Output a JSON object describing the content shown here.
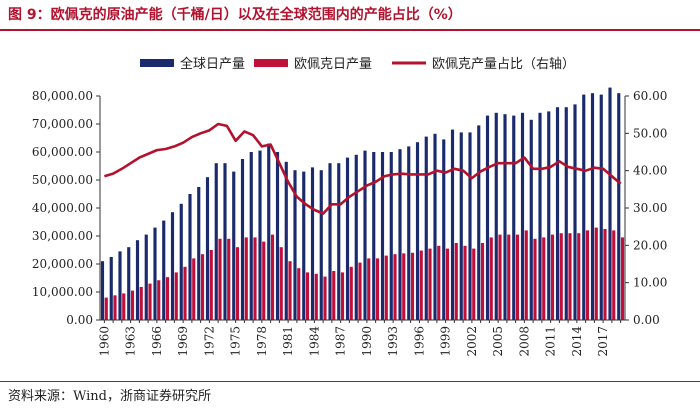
{
  "title": "图 9：欧佩克的原油产能（千桶/日）以及在全球范围内的产能占比（%）",
  "source": "资料来源：Wind，浙商证券研究所",
  "colors": {
    "title": "#b3122e",
    "global": "#1a2a6c",
    "opec": "#c0103a",
    "share": "#b3122e"
  },
  "chart_data": {
    "type": "bar",
    "x": [
      1960,
      1961,
      1962,
      1963,
      1964,
      1965,
      1966,
      1967,
      1968,
      1969,
      1970,
      1971,
      1972,
      1973,
      1974,
      1975,
      1976,
      1977,
      1978,
      1979,
      1980,
      1981,
      1982,
      1983,
      1984,
      1985,
      1986,
      1987,
      1988,
      1989,
      1990,
      1991,
      1992,
      1993,
      1994,
      1995,
      1996,
      1997,
      1998,
      1999,
      2000,
      2001,
      2002,
      2003,
      2004,
      2005,
      2006,
      2007,
      2008,
      2009,
      2010,
      2011,
      2012,
      2013,
      2014,
      2015,
      2016,
      2017,
      2018,
      2019
    ],
    "x_tick_labels": [
      "1960",
      "1963",
      "1966",
      "1969",
      "1972",
      "1975",
      "1978",
      "1981",
      "1984",
      "1987",
      "1990",
      "1993",
      "1996",
      "1999",
      "2002",
      "2005",
      "2008",
      "2011",
      "2014",
      "2017"
    ],
    "series": [
      {
        "name": "全球日产量",
        "type": "bar",
        "axis": "left",
        "values": [
          21000,
          22500,
          24500,
          26000,
          28500,
          30500,
          33000,
          35500,
          38500,
          41500,
          45000,
          47500,
          51000,
          56000,
          56000,
          53000,
          57500,
          60000,
          60500,
          63000,
          60000,
          56500,
          53500,
          53000,
          54500,
          53500,
          56000,
          56000,
          58000,
          59000,
          60500,
          60000,
          60000,
          60000,
          61000,
          62000,
          63500,
          65500,
          66500,
          64500,
          68000,
          67000,
          67000,
          69500,
          73000,
          74000,
          73500,
          73000,
          74000,
          71500,
          74000,
          74500,
          76000,
          76000,
          77000,
          80500,
          81000,
          80500,
          83000,
          81000
        ]
      },
      {
        "name": "欧佩克日产量",
        "type": "bar",
        "axis": "left",
        "values": [
          8000,
          8800,
          9500,
          10500,
          11800,
          13000,
          14200,
          15300,
          17000,
          19000,
          22000,
          23500,
          25000,
          29000,
          29000,
          26000,
          29500,
          29500,
          28000,
          30500,
          26000,
          21000,
          18500,
          17000,
          16500,
          15500,
          17500,
          17000,
          19000,
          20500,
          22000,
          22000,
          23000,
          23500,
          23800,
          24000,
          24800,
          25500,
          26500,
          25500,
          27500,
          26500,
          25500,
          27500,
          29500,
          30500,
          30500,
          30500,
          32000,
          29000,
          29500,
          30500,
          31000,
          31000,
          31000,
          32000,
          33000,
          32500,
          32000,
          29500
        ]
      },
      {
        "name": "欧佩克产量占比（右轴）",
        "type": "line",
        "axis": "right",
        "values": [
          38.5,
          39.2,
          40.5,
          42.0,
          43.5,
          44.5,
          45.5,
          45.8,
          46.5,
          47.5,
          49.0,
          50.0,
          50.8,
          52.5,
          52.0,
          48.0,
          50.5,
          49.5,
          46.5,
          47.0,
          42.0,
          37.0,
          33.0,
          31.0,
          29.5,
          28.5,
          31.0,
          31.0,
          33.0,
          34.5,
          36.0,
          37.0,
          38.5,
          39.0,
          39.2,
          39.0,
          39.0,
          39.0,
          40.0,
          39.5,
          40.5,
          40.0,
          38.0,
          39.8,
          41.0,
          42.0,
          42.0,
          42.0,
          43.5,
          40.5,
          40.5,
          41.0,
          42.5,
          41.0,
          40.5,
          40.0,
          40.8,
          40.5,
          38.5,
          36.5
        ]
      }
    ],
    "y_left": {
      "lim": [
        0,
        80000
      ],
      "ticks": [
        "0.00",
        "10,000.00",
        "20,000.00",
        "30,000.00",
        "40,000.00",
        "50,000.00",
        "60,000.00",
        "70,000.00",
        "80,000.00"
      ]
    },
    "y_right": {
      "lim": [
        0,
        60
      ],
      "ticks": [
        "0.00",
        "10.00",
        "20.00",
        "30.00",
        "40.00",
        "50.00",
        "60.00"
      ]
    },
    "legend_position": "top",
    "grid": false
  }
}
